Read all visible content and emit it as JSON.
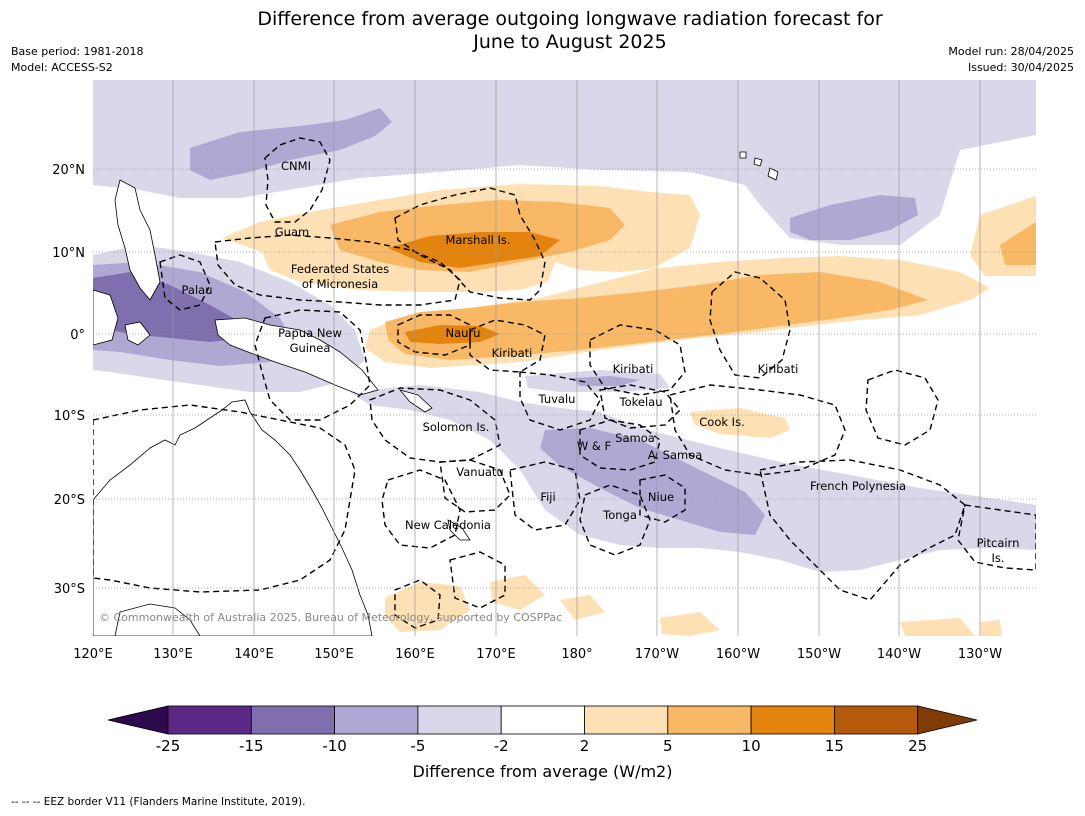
{
  "header": {
    "title_line1": "Difference from average outgoing longwave radiation forecast for",
    "title_line2": "June to August 2025",
    "base_period": "Base period: 1981-2018",
    "model": "Model: ACCESS-S2",
    "model_run": "Model run: 28/04/2025",
    "issued": "Issued: 30/04/2025"
  },
  "map": {
    "lon_labels": [
      "120°E",
      "130°E",
      "140°E",
      "150°E",
      "160°E",
      "170°E",
      "180°",
      "170°W",
      "160°W",
      "150°W",
      "140°W",
      "130°W"
    ],
    "lat_labels": [
      "20°N",
      "10°N",
      "0°",
      "10°S",
      "20°S",
      "30°S"
    ],
    "copyright": "© Commonwealth of Australia 2025, Bureau of Meteorology, supported by COSPPac",
    "regions": [
      "CNMI",
      "Guam",
      "Marshall Is.",
      "Federated States",
      "of Micronesia",
      "Palau",
      "Papua New",
      "Guinea",
      "Nauru",
      "Kiribati",
      "Kiribati",
      "Kiribati",
      "Tuvalu",
      "Tokelau",
      "Solomon Is.",
      "Cook Is.",
      "Samoa",
      "W & F",
      "A. Samoa",
      "Vanuatu",
      "Fiji",
      "Niue",
      "Tonga",
      "French Polynesia",
      "New Caledonia",
      "Pitcairn",
      "Is."
    ]
  },
  "colorbar": {
    "ticks": [
      "-25",
      "-15",
      "-10",
      "-5",
      "-2",
      "2",
      "5",
      "10",
      "15",
      "25"
    ],
    "colors": [
      "#5b2a86",
      "#7f6fae",
      "#afa8d2",
      "#d8d8ea",
      "#ffffff",
      "#fde0b3",
      "#f9b865",
      "#e3840f",
      "#b5590a"
    ],
    "extend_low": "#2d0a4e",
    "extend_high": "#7f3c07",
    "label": "Difference from average (W/m2)"
  },
  "footnote": "--  --  -- EEZ border V11 (Flanders Marine Institute, 2019)."
}
